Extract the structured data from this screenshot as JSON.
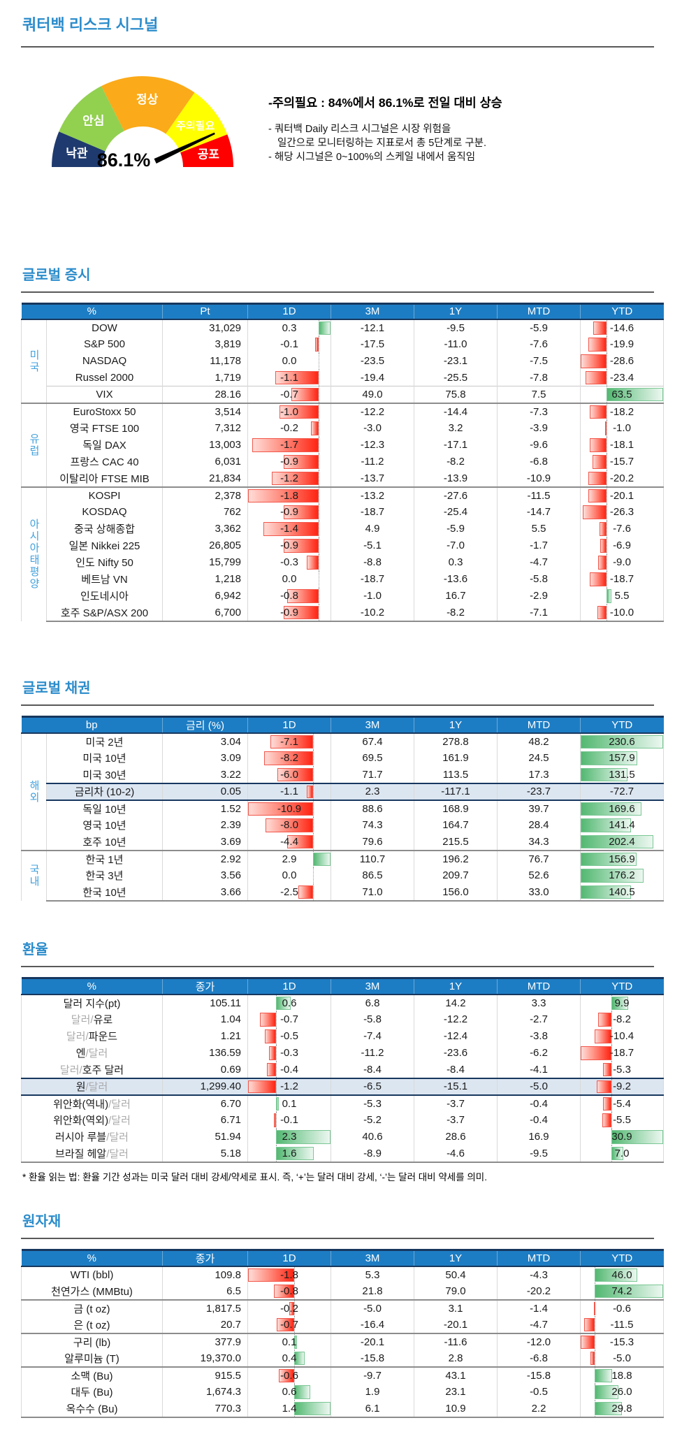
{
  "header": {
    "title": "쿼터백 리스크 시그널"
  },
  "theme": {
    "accent_blue": "#2b8ccb",
    "table_header_bg": "#1d7dc4",
    "navy_border": "#17375e",
    "highlight_row_bg": "#dce6f1",
    "group_label_blue": "#41a0dc",
    "positive_bar_green": "#53b871",
    "negative_bar_red": "#ff2412"
  },
  "gauge": {
    "value_label": "86.1%",
    "value_pct": 86.1,
    "segments": [
      {
        "label": "낙관",
        "color": "#1f3a6e",
        "from": 180,
        "to": 157
      },
      {
        "label": "안심",
        "color": "#92d050",
        "from": 157,
        "to": 117
      },
      {
        "label": "정상",
        "color": "#fbaa19",
        "from": 117,
        "to": 55
      },
      {
        "label": "주의필요",
        "color": "#ffff00",
        "from": 55,
        "to": 21
      },
      {
        "label": "공포",
        "color": "#ff0000",
        "from": 21,
        "to": 0
      }
    ],
    "note_headline": "-주의필요 : 84%에서 86.1%로 전일 대비 상승",
    "note_lines": [
      "- 쿼터백 Daily 리스크 시그널은 시장 위험을",
      "일간으로 모니터링하는 지표로서 총 5단계로 구분.",
      "- 해당 시그널은 0~100%의 스케일 내에서 움직임"
    ]
  },
  "sections": [
    {
      "id": "stocks",
      "title": "글로벌 증시",
      "cols": [
        "%",
        "Pt",
        "1D",
        "3M",
        "1Y",
        "MTD",
        "YTD"
      ],
      "has_group": true,
      "bar_cols": [
        {
          "i": 1
        },
        {
          "i": 5
        }
      ],
      "groups": [
        {
          "label": "미국",
          "rows": [
            {
              "name": "DOW",
              "v": [
                "31,029",
                "0.3",
                "-12.1",
                "-9.5",
                "-5.9",
                "-14.6"
              ]
            },
            {
              "name": "S&P 500",
              "v": [
                "3,819",
                "-0.1",
                "-17.5",
                "-11.0",
                "-7.6",
                "-19.9"
              ]
            },
            {
              "name": "NASDAQ",
              "v": [
                "11,178",
                "0.0",
                "-23.5",
                "-23.1",
                "-7.5",
                "-28.6"
              ]
            },
            {
              "name": "Russel 2000",
              "v": [
                "1,719",
                "-1.1",
                "-19.4",
                "-25.5",
                "-7.8",
                "-23.4"
              ]
            },
            {
              "name": "VIX",
              "sep": "light",
              "v": [
                "28.16",
                "-0.7",
                "49.0",
                "75.8",
                "7.5",
                "63.5"
              ]
            }
          ]
        },
        {
          "label": "유럽",
          "rows": [
            {
              "name": "EuroStoxx 50",
              "v": [
                "3,514",
                "-1.0",
                "-12.2",
                "-14.4",
                "-7.3",
                "-18.2"
              ]
            },
            {
              "name": "영국 FTSE 100",
              "v": [
                "7,312",
                "-0.2",
                "-3.0",
                "3.2",
                "-3.9",
                "-1.0"
              ]
            },
            {
              "name": "독일 DAX",
              "v": [
                "13,003",
                "-1.7",
                "-12.3",
                "-17.1",
                "-9.6",
                "-18.1"
              ]
            },
            {
              "name": "프랑스 CAC 40",
              "v": [
                "6,031",
                "-0.9",
                "-11.2",
                "-8.2",
                "-6.8",
                "-15.7"
              ]
            },
            {
              "name": "이탈리아 FTSE MIB",
              "v": [
                "21,834",
                "-1.2",
                "-13.7",
                "-13.9",
                "-10.9",
                "-20.2"
              ]
            }
          ]
        },
        {
          "label": "아시아태평양",
          "rows": [
            {
              "name": "KOSPI",
              "v": [
                "2,378",
                "-1.8",
                "-13.2",
                "-27.6",
                "-11.5",
                "-20.1"
              ]
            },
            {
              "name": "KOSDAQ",
              "v": [
                "762",
                "-0.9",
                "-18.7",
                "-25.4",
                "-14.7",
                "-26.3"
              ]
            },
            {
              "name": "중국 상해종합",
              "v": [
                "3,362",
                "-1.4",
                "4.9",
                "-5.9",
                "5.5",
                "-7.6"
              ]
            },
            {
              "name": "일본 Nikkei 225",
              "v": [
                "26,805",
                "-0.9",
                "-5.1",
                "-7.0",
                "-1.7",
                "-6.9"
              ]
            },
            {
              "name": "인도 Nifty 50",
              "v": [
                "15,799",
                "-0.3",
                "-8.8",
                "0.3",
                "-4.7",
                "-9.0"
              ]
            },
            {
              "name": "베트남 VN",
              "v": [
                "1,218",
                "0.0",
                "-18.7",
                "-13.6",
                "-5.8",
                "-18.7"
              ]
            },
            {
              "name": "인도네시아",
              "v": [
                "6,942",
                "-0.8",
                "-1.0",
                "16.7",
                "-2.9",
                "5.5"
              ]
            },
            {
              "name": "호주 S&P/ASX 200",
              "v": [
                "6,700",
                "-0.9",
                "-10.2",
                "-8.2",
                "-7.1",
                "-10.0"
              ]
            }
          ]
        }
      ]
    },
    {
      "id": "bonds",
      "title": "글로벌 채권",
      "cols": [
        "bp",
        "금리 (%)",
        "1D",
        "3M",
        "1Y",
        "MTD",
        "YTD"
      ],
      "has_group": true,
      "bar_cols": [
        {
          "i": 1
        },
        {
          "i": 5,
          "min_zero": true
        }
      ],
      "groups": [
        {
          "label": "해외",
          "rows": [
            {
              "name": "미국 2년",
              "v": [
                "3.04",
                "-7.1",
                "67.4",
                "278.8",
                "48.2",
                "230.6"
              ]
            },
            {
              "name": "미국 10년",
              "v": [
                "3.09",
                "-8.2",
                "69.5",
                "161.9",
                "24.5",
                "157.9"
              ]
            },
            {
              "name": "미국 30년",
              "v": [
                "3.22",
                "-6.0",
                "71.7",
                "113.5",
                "17.3",
                "131.5"
              ]
            },
            {
              "name": "금리차 (10-2)",
              "hl": true,
              "v": [
                "0.05",
                "-1.1",
                "2.3",
                "-117.1",
                "-23.7",
                "-72.7"
              ]
            },
            {
              "name": "독일 10년",
              "v": [
                "1.52",
                "-10.9",
                "88.6",
                "168.9",
                "39.7",
                "169.6"
              ]
            },
            {
              "name": "영국 10년",
              "v": [
                "2.39",
                "-8.0",
                "74.3",
                "164.7",
                "28.4",
                "141.4"
              ]
            },
            {
              "name": "호주 10년",
              "v": [
                "3.69",
                "-4.4",
                "79.6",
                "215.5",
                "34.3",
                "202.4"
              ]
            }
          ]
        },
        {
          "label": "국내",
          "rows": [
            {
              "name": "한국 1년",
              "v": [
                "2.92",
                "2.9",
                "110.7",
                "196.2",
                "76.7",
                "156.9"
              ]
            },
            {
              "name": "한국 3년",
              "v": [
                "3.56",
                "0.0",
                "86.5",
                "209.7",
                "52.6",
                "176.2"
              ]
            },
            {
              "name": "한국 10년",
              "v": [
                "3.66",
                "-2.5",
                "71.0",
                "156.0",
                "33.0",
                "140.5"
              ]
            }
          ]
        }
      ]
    },
    {
      "id": "fx",
      "title": "환율",
      "cols": [
        "%",
        "종가",
        "1D",
        "3M",
        "1Y",
        "MTD",
        "YTD"
      ],
      "has_group": false,
      "bar_cols": [
        {
          "i": 1
        },
        {
          "i": 5
        }
      ],
      "footnote": "* 환율 읽는 법: 환율 기간 성과는 미국 달러 대비 강세/약세로 표시. 즉, ‘+’는 달러 대비 강세, ‘-’는 달러 대비 약세를 의미.",
      "groups": [
        {
          "label": null,
          "rows": [
            {
              "parts": [
                [
                  "달러 지수(pt)",
                  0
                ]
              ],
              "v": [
                "105.11",
                "0.6",
                "6.8",
                "14.2",
                "3.3",
                "9.9"
              ]
            },
            {
              "parts": [
                [
                  "달러/",
                  1
                ],
                [
                  "유로",
                  0
                ]
              ],
              "v": [
                "1.04",
                "-0.7",
                "-5.8",
                "-12.2",
                "-2.7",
                "-8.2"
              ]
            },
            {
              "parts": [
                [
                  "달러/",
                  1
                ],
                [
                  "파운드",
                  0
                ]
              ],
              "v": [
                "1.21",
                "-0.5",
                "-7.4",
                "-12.4",
                "-3.8",
                "-10.4"
              ]
            },
            {
              "parts": [
                [
                  "엔",
                  0
                ],
                [
                  "/달러",
                  1
                ]
              ],
              "v": [
                "136.59",
                "-0.3",
                "-11.2",
                "-23.6",
                "-6.2",
                "-18.7"
              ]
            },
            {
              "parts": [
                [
                  "달러/",
                  1
                ],
                [
                  "호주 달러",
                  0
                ]
              ],
              "v": [
                "0.69",
                "-0.4",
                "-8.4",
                "-8.4",
                "-4.1",
                "-5.3"
              ]
            },
            {
              "parts": [
                [
                  "원",
                  0
                ],
                [
                  "/달러",
                  1
                ]
              ],
              "hl": true,
              "v": [
                "1,299.40",
                "-1.2",
                "-6.5",
                "-15.1",
                "-5.0",
                "-9.2"
              ]
            },
            {
              "parts": [
                [
                  "위안화(역내)",
                  0
                ],
                [
                  "/달러",
                  1
                ]
              ],
              "v": [
                "6.70",
                "0.1",
                "-5.3",
                "-3.7",
                "-0.4",
                "-5.4"
              ]
            },
            {
              "parts": [
                [
                  "위안화(역외)",
                  0
                ],
                [
                  "/달러",
                  1
                ]
              ],
              "v": [
                "6.71",
                "-0.1",
                "-5.2",
                "-3.7",
                "-0.4",
                "-5.5"
              ]
            },
            {
              "parts": [
                [
                  "러시아 루블",
                  0
                ],
                [
                  "/달러",
                  1
                ]
              ],
              "v": [
                "51.94",
                "2.3",
                "40.6",
                "28.6",
                "16.9",
                "30.9"
              ]
            },
            {
              "parts": [
                [
                  "브라질 헤알",
                  0
                ],
                [
                  "/달러",
                  1
                ]
              ],
              "v": [
                "5.18",
                "1.6",
                "-8.9",
                "-4.6",
                "-9.5",
                "7.0"
              ]
            }
          ]
        }
      ]
    },
    {
      "id": "comm",
      "title": "원자재",
      "cols": [
        "%",
        "종가",
        "1D",
        "3M",
        "1Y",
        "MTD",
        "YTD"
      ],
      "has_group": false,
      "bar_cols": [
        {
          "i": 1
        },
        {
          "i": 5
        }
      ],
      "groups": [
        {
          "label": null,
          "rows": [
            {
              "name": "WTI (bbl)",
              "v": [
                "109.8",
                "-1.8",
                "5.3",
                "50.4",
                "-4.3",
                "46.0"
              ]
            },
            {
              "name": "천연가스 (MMBtu)",
              "v": [
                "6.5",
                "-0.8",
                "21.8",
                "79.0",
                "-20.2",
                "74.2"
              ]
            },
            {
              "name": "금 (t oz)",
              "sep": "heavy",
              "v": [
                "1,817.5",
                "-0.2",
                "-5.0",
                "3.1",
                "-1.4",
                "-0.6"
              ]
            },
            {
              "name": "은 (t oz)",
              "v": [
                "20.7",
                "-0.7",
                "-16.4",
                "-20.1",
                "-4.7",
                "-11.5"
              ]
            },
            {
              "name": "구리 (lb)",
              "sep": "heavy",
              "v": [
                "377.9",
                "0.1",
                "-20.1",
                "-11.6",
                "-12.0",
                "-15.3"
              ]
            },
            {
              "name": "알루미늄 (T)",
              "v": [
                "19,370.0",
                "0.4",
                "-15.8",
                "2.8",
                "-6.8",
                "-5.0"
              ]
            },
            {
              "name": "소맥 (Bu)",
              "sep": "heavy",
              "v": [
                "915.5",
                "-0.6",
                "-9.7",
                "43.1",
                "-15.8",
                "18.8"
              ]
            },
            {
              "name": "대두 (Bu)",
              "v": [
                "1,674.3",
                "0.6",
                "1.9",
                "23.1",
                "-0.5",
                "26.0"
              ]
            },
            {
              "name": "옥수수 (Bu)",
              "v": [
                "770.3",
                "1.4",
                "6.1",
                "10.9",
                "2.2",
                "29.8"
              ]
            }
          ]
        }
      ]
    }
  ]
}
